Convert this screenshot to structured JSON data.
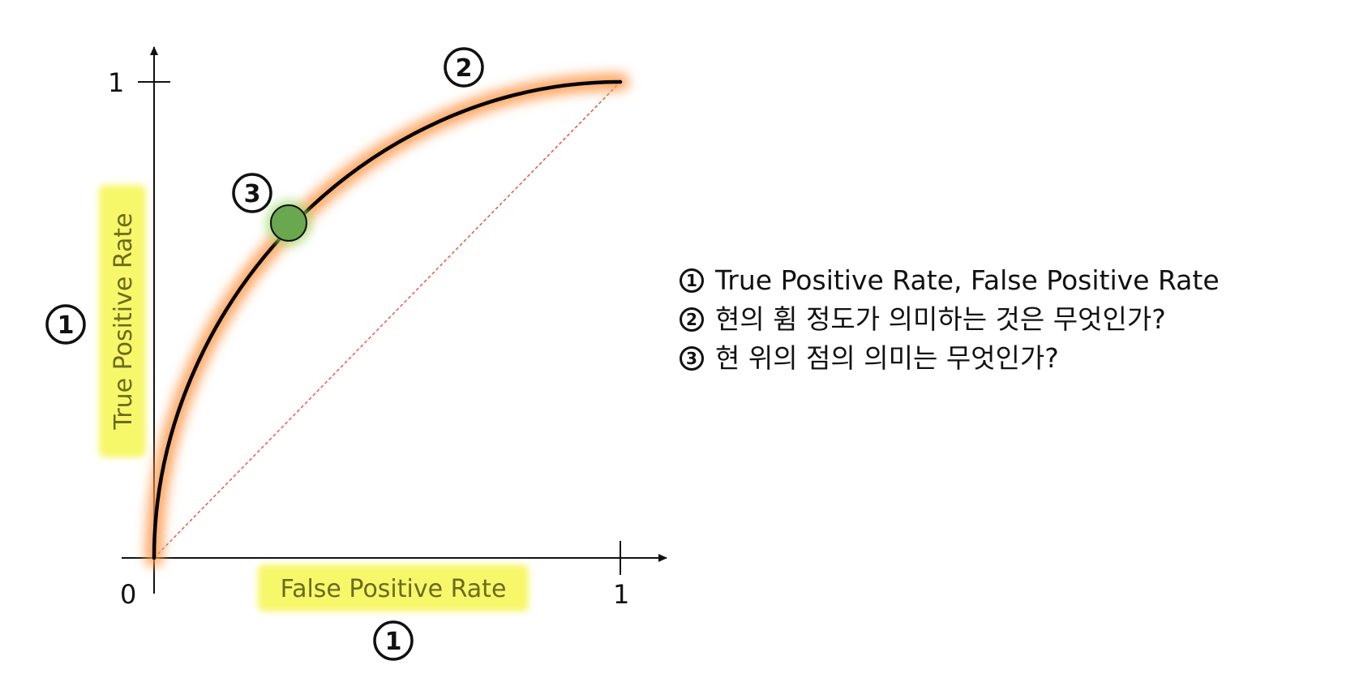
{
  "diagram": {
    "ticks": {
      "origin": "0",
      "x_one": "1",
      "y_one": "1"
    },
    "axis_titles": {
      "x": "False Positive Rate",
      "y": "True Positive Rate"
    },
    "markers": {
      "x_axis": "1",
      "y_axis": "1",
      "curve": "2",
      "point": "3"
    },
    "colors": {
      "curve": "#000000",
      "curve_glow": "#ff9a4d",
      "diagonal": "#e05a4a",
      "point_fill": "#6aa84f",
      "label_highlight": "#f7f76a",
      "label_text": "#6b6b1e"
    }
  },
  "notes": [
    {
      "num": "1",
      "text": "True Positive Rate, False Positive Rate"
    },
    {
      "num": "2",
      "text": "현의 휨 정도가 의미하는 것은 무엇인가?"
    },
    {
      "num": "3",
      "text": "현 위의 점의 의미는 무엇인가?"
    }
  ]
}
